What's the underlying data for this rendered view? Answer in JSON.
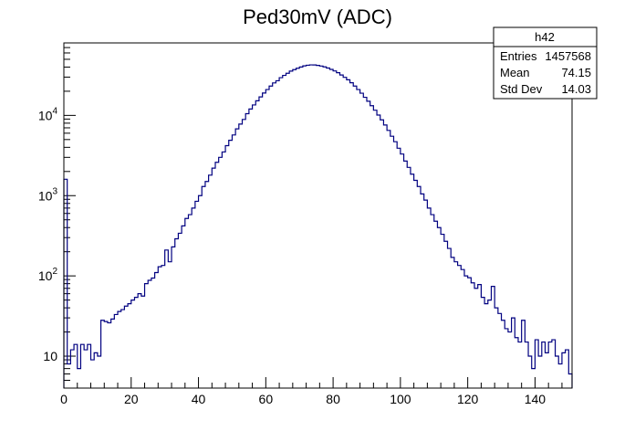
{
  "chart_data": {
    "type": "histogram",
    "title": "Ped30mV (ADC)",
    "xlabel": "",
    "ylabel": "",
    "xlim": [
      0,
      151
    ],
    "ylim": [
      4,
      80000
    ],
    "yscale": "log",
    "bin_width": 1,
    "line_color": "#000080",
    "x_ticks": [
      0,
      20,
      40,
      60,
      80,
      100,
      120,
      140
    ],
    "x_tick_labels": [
      "0",
      "20",
      "40",
      "60",
      "80",
      "100",
      "120",
      "140"
    ],
    "y_ticks": [
      10,
      100,
      1000,
      10000
    ],
    "y_tick_labels": [
      {
        "base": "10",
        "exp": ""
      },
      {
        "base": "10",
        "exp": "2"
      },
      {
        "base": "10",
        "exp": "3"
      },
      {
        "base": "10",
        "exp": "4"
      }
    ],
    "bins": [
      [
        0,
        1600
      ],
      [
        1,
        8
      ],
      [
        2,
        12
      ],
      [
        3,
        14
      ],
      [
        4,
        7
      ],
      [
        5,
        14
      ],
      [
        6,
        12
      ],
      [
        7,
        14
      ],
      [
        8,
        9
      ],
      [
        9,
        11
      ],
      [
        10,
        10
      ],
      [
        11,
        28
      ],
      [
        12,
        27
      ],
      [
        13,
        26
      ],
      [
        14,
        29
      ],
      [
        15,
        33
      ],
      [
        16,
        36
      ],
      [
        17,
        38
      ],
      [
        18,
        42
      ],
      [
        19,
        45
      ],
      [
        20,
        50
      ],
      [
        21,
        54
      ],
      [
        22,
        60
      ],
      [
        23,
        56
      ],
      [
        24,
        80
      ],
      [
        25,
        88
      ],
      [
        26,
        94
      ],
      [
        27,
        110
      ],
      [
        28,
        130
      ],
      [
        29,
        135
      ],
      [
        30,
        210
      ],
      [
        31,
        150
      ],
      [
        32,
        230
      ],
      [
        33,
        290
      ],
      [
        34,
        340
      ],
      [
        35,
        420
      ],
      [
        36,
        520
      ],
      [
        37,
        580
      ],
      [
        38,
        700
      ],
      [
        39,
        850
      ],
      [
        40,
        1000
      ],
      [
        41,
        1300
      ],
      [
        42,
        1500
      ],
      [
        43,
        1800
      ],
      [
        44,
        2200
      ],
      [
        45,
        2600
      ],
      [
        46,
        3000
      ],
      [
        47,
        3500
      ],
      [
        48,
        4200
      ],
      [
        49,
        4900
      ],
      [
        50,
        5700
      ],
      [
        51,
        6800
      ],
      [
        52,
        7800
      ],
      [
        53,
        8900
      ],
      [
        54,
        10500
      ],
      [
        55,
        12000
      ],
      [
        56,
        13500
      ],
      [
        57,
        15200
      ],
      [
        58,
        17000
      ],
      [
        59,
        19000
      ],
      [
        60,
        21000
      ],
      [
        61,
        23200
      ],
      [
        62,
        25400
      ],
      [
        63,
        27000
      ],
      [
        64,
        29500
      ],
      [
        65,
        31500
      ],
      [
        66,
        33500
      ],
      [
        67,
        35600
      ],
      [
        68,
        37200
      ],
      [
        69,
        38700
      ],
      [
        70,
        40100
      ],
      [
        71,
        41400
      ],
      [
        72,
        42200
      ],
      [
        73,
        42600
      ],
      [
        74,
        42500
      ],
      [
        75,
        42000
      ],
      [
        76,
        41200
      ],
      [
        77,
        40200
      ],
      [
        78,
        38900
      ],
      [
        79,
        37400
      ],
      [
        80,
        35800
      ],
      [
        81,
        34000
      ],
      [
        82,
        31900
      ],
      [
        83,
        29800
      ],
      [
        84,
        27800
      ],
      [
        85,
        25500
      ],
      [
        86,
        23200
      ],
      [
        87,
        21000
      ],
      [
        88,
        18900
      ],
      [
        89,
        16800
      ],
      [
        90,
        15000
      ],
      [
        91,
        13200
      ],
      [
        92,
        11600
      ],
      [
        93,
        10100
      ],
      [
        94,
        8800
      ],
      [
        95,
        7600
      ],
      [
        96,
        6500
      ],
      [
        97,
        5500
      ],
      [
        98,
        4700
      ],
      [
        99,
        3900
      ],
      [
        100,
        3300
      ],
      [
        101,
        2700
      ],
      [
        102,
        2250
      ],
      [
        103,
        1850
      ],
      [
        104,
        1550
      ],
      [
        105,
        1300
      ],
      [
        106,
        1050
      ],
      [
        107,
        880
      ],
      [
        108,
        700
      ],
      [
        109,
        580
      ],
      [
        110,
        480
      ],
      [
        111,
        400
      ],
      [
        112,
        330
      ],
      [
        113,
        270
      ],
      [
        114,
        220
      ],
      [
        115,
        170
      ],
      [
        116,
        150
      ],
      [
        117,
        135
      ],
      [
        118,
        120
      ],
      [
        119,
        100
      ],
      [
        120,
        95
      ],
      [
        121,
        82
      ],
      [
        122,
        70
      ],
      [
        123,
        78
      ],
      [
        124,
        54
      ],
      [
        125,
        45
      ],
      [
        126,
        50
      ],
      [
        127,
        74
      ],
      [
        128,
        40
      ],
      [
        129,
        34
      ],
      [
        130,
        28
      ],
      [
        131,
        22
      ],
      [
        132,
        20
      ],
      [
        133,
        30
      ],
      [
        134,
        17
      ],
      [
        135,
        15
      ],
      [
        136,
        28
      ],
      [
        137,
        15
      ],
      [
        138,
        10
      ],
      [
        139,
        7
      ],
      [
        140,
        16
      ],
      [
        141,
        10
      ],
      [
        142,
        15
      ],
      [
        143,
        11
      ],
      [
        144,
        15
      ],
      [
        145,
        16
      ],
      [
        146,
        10
      ],
      [
        147,
        8
      ],
      [
        148,
        11
      ],
      [
        149,
        12
      ],
      [
        150,
        6
      ]
    ]
  },
  "stats_box": {
    "name": "h42",
    "rows": [
      {
        "label": "Entries",
        "value": "1457568"
      },
      {
        "label": "Mean",
        "value": "74.15"
      },
      {
        "label": "Std Dev",
        "value": "14.03"
      }
    ]
  }
}
